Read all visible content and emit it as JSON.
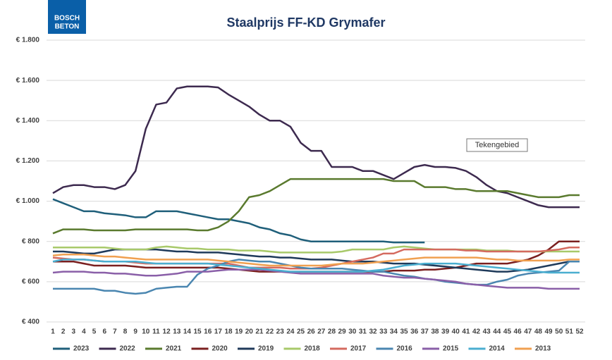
{
  "chart_data": {
    "type": "line",
    "title": "Staalprijs FF-KD Grymafer",
    "logo": [
      "BOSCH",
      "BETON"
    ],
    "annotation": "Tekengebied",
    "categories": [
      1,
      2,
      3,
      4,
      5,
      6,
      7,
      8,
      9,
      10,
      11,
      12,
      13,
      14,
      15,
      16,
      17,
      18,
      19,
      20,
      21,
      22,
      23,
      24,
      25,
      26,
      27,
      28,
      29,
      30,
      31,
      32,
      33,
      34,
      35,
      36,
      37,
      38,
      39,
      40,
      41,
      42,
      43,
      44,
      45,
      46,
      47,
      48,
      49,
      50,
      51,
      52
    ],
    "ylim": [
      400,
      1800
    ],
    "yticks": [
      {
        "value": 400,
        "label": "€ 400"
      },
      {
        "value": 600,
        "label": "€ 600"
      },
      {
        "value": 800,
        "label": "€ 800"
      },
      {
        "value": 1000,
        "label": "€ 1.000"
      },
      {
        "value": 1200,
        "label": "€ 1.200"
      },
      {
        "value": 1400,
        "label": "€ 1.400"
      },
      {
        "value": 1600,
        "label": "€ 1.600"
      },
      {
        "value": 1800,
        "label": "€ 1.800"
      }
    ],
    "grid": true,
    "legend": "bottom",
    "series": [
      {
        "name": "2023",
        "color": "#1f5f7a",
        "values": [
          1010,
          990,
          970,
          950,
          950,
          940,
          935,
          930,
          920,
          920,
          950,
          950,
          950,
          940,
          930,
          920,
          910,
          910,
          900,
          890,
          870,
          860,
          840,
          830,
          810,
          800,
          800,
          800,
          800,
          800,
          800,
          800,
          800,
          795,
          795,
          795,
          795,
          null,
          null,
          null,
          null,
          null,
          null,
          null,
          null,
          null,
          null,
          null,
          null,
          null,
          null,
          null
        ]
      },
      {
        "name": "2022",
        "color": "#3d2a4f",
        "values": [
          1040,
          1070,
          1080,
          1080,
          1070,
          1070,
          1060,
          1080,
          1150,
          1360,
          1480,
          1490,
          1560,
          1570,
          1570,
          1570,
          1565,
          1530,
          1500,
          1470,
          1430,
          1400,
          1400,
          1370,
          1290,
          1250,
          1250,
          1170,
          1170,
          1170,
          1150,
          1150,
          1130,
          1110,
          1140,
          1170,
          1180,
          1170,
          1170,
          1165,
          1150,
          1120,
          1080,
          1050,
          1040,
          1020,
          1000,
          980,
          970,
          970,
          970,
          970
        ]
      },
      {
        "name": "2021",
        "color": "#5a7a2e",
        "values": [
          840,
          860,
          860,
          860,
          855,
          855,
          855,
          855,
          860,
          860,
          860,
          860,
          860,
          860,
          855,
          855,
          870,
          900,
          950,
          1020,
          1030,
          1050,
          1080,
          1110,
          1110,
          1110,
          1110,
          1110,
          1110,
          1110,
          1110,
          1110,
          1110,
          1100,
          1100,
          1100,
          1070,
          1070,
          1070,
          1060,
          1060,
          1050,
          1050,
          1050,
          1050,
          1040,
          1030,
          1020,
          1020,
          1020,
          1030,
          1030
        ]
      },
      {
        "name": "2020",
        "color": "#7a1f1f",
        "values": [
          700,
          700,
          700,
          690,
          680,
          680,
          680,
          680,
          675,
          670,
          670,
          670,
          670,
          670,
          670,
          670,
          670,
          665,
          660,
          655,
          650,
          650,
          650,
          650,
          650,
          650,
          650,
          650,
          650,
          650,
          650,
          650,
          650,
          655,
          655,
          655,
          660,
          660,
          665,
          670,
          680,
          690,
          690,
          690,
          690,
          700,
          710,
          730,
          760,
          800,
          800,
          800
        ]
      },
      {
        "name": "2019",
        "color": "#1f3a5a",
        "values": [
          750,
          750,
          745,
          740,
          740,
          750,
          760,
          760,
          760,
          760,
          760,
          755,
          750,
          750,
          745,
          745,
          745,
          740,
          735,
          730,
          725,
          725,
          720,
          720,
          715,
          710,
          710,
          710,
          705,
          700,
          700,
          700,
          695,
          690,
          690,
          690,
          685,
          680,
          675,
          670,
          665,
          660,
          655,
          650,
          650,
          655,
          660,
          670,
          680,
          690,
          700,
          700
        ]
      },
      {
        "name": "2018",
        "color": "#a8c96a",
        "values": [
          770,
          770,
          770,
          770,
          770,
          770,
          765,
          760,
          760,
          760,
          770,
          775,
          770,
          765,
          765,
          760,
          760,
          760,
          755,
          755,
          755,
          750,
          745,
          745,
          745,
          745,
          745,
          745,
          750,
          760,
          760,
          760,
          760,
          770,
          775,
          770,
          765,
          760,
          760,
          760,
          760,
          760,
          755,
          755,
          755,
          750,
          750,
          750,
          750,
          750,
          750,
          750
        ]
      },
      {
        "name": "2017",
        "color": "#d46a5f",
        "values": [
          720,
          715,
          710,
          710,
          705,
          700,
          700,
          700,
          695,
          690,
          690,
          690,
          690,
          690,
          690,
          690,
          690,
          690,
          680,
          670,
          670,
          670,
          670,
          665,
          665,
          665,
          670,
          680,
          690,
          700,
          710,
          720,
          740,
          740,
          760,
          760,
          760,
          760,
          760,
          760,
          755,
          755,
          750,
          750,
          750,
          750,
          750,
          750,
          755,
          760,
          770,
          770
        ]
      },
      {
        "name": "2016",
        "color": "#4a86b0",
        "values": [
          565,
          565,
          565,
          565,
          565,
          555,
          555,
          545,
          540,
          545,
          565,
          570,
          575,
          575,
          635,
          665,
          680,
          700,
          710,
          705,
          700,
          700,
          690,
          680,
          670,
          665,
          665,
          665,
          665,
          660,
          655,
          650,
          650,
          640,
          630,
          625,
          615,
          610,
          600,
          595,
          590,
          585,
          585,
          600,
          610,
          630,
          640,
          645,
          650,
          655,
          700,
          700
        ]
      },
      {
        "name": "2015",
        "color": "#8a5fa8",
        "values": [
          645,
          650,
          650,
          650,
          645,
          645,
          640,
          640,
          635,
          630,
          630,
          635,
          640,
          650,
          650,
          650,
          655,
          660,
          660,
          660,
          660,
          655,
          650,
          645,
          640,
          640,
          640,
          640,
          640,
          640,
          640,
          640,
          630,
          625,
          620,
          620,
          615,
          610,
          605,
          600,
          590,
          585,
          580,
          575,
          570,
          570,
          570,
          570,
          565,
          565,
          565,
          565
        ]
      },
      {
        "name": "2014",
        "color": "#4aaed0",
        "values": [
          700,
          710,
          710,
          710,
          705,
          700,
          700,
          700,
          700,
          695,
          690,
          690,
          690,
          690,
          690,
          690,
          685,
          680,
          675,
          670,
          665,
          660,
          655,
          650,
          650,
          650,
          650,
          650,
          650,
          650,
          650,
          655,
          660,
          670,
          680,
          685,
          690,
          690,
          690,
          690,
          685,
          680,
          675,
          670,
          665,
          660,
          655,
          650,
          645,
          645,
          645,
          645
        ]
      },
      {
        "name": "2013",
        "color": "#f0a050",
        "values": [
          730,
          735,
          735,
          735,
          730,
          725,
          725,
          720,
          715,
          710,
          710,
          710,
          710,
          710,
          710,
          710,
          705,
          700,
          695,
          690,
          685,
          680,
          680,
          680,
          680,
          680,
          680,
          685,
          690,
          690,
          690,
          695,
          700,
          705,
          710,
          715,
          720,
          720,
          720,
          720,
          720,
          720,
          715,
          710,
          710,
          705,
          705,
          705,
          705,
          705,
          710,
          710
        ]
      }
    ]
  }
}
